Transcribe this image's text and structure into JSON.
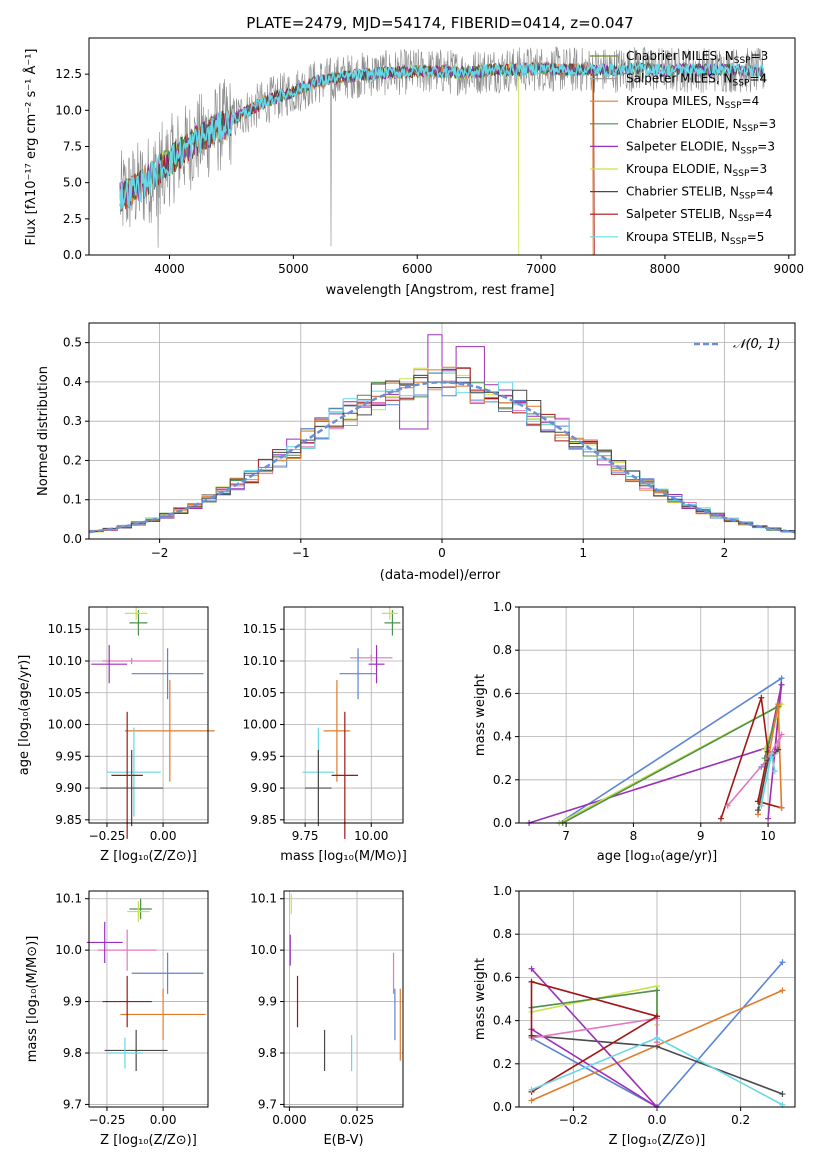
{
  "colors": {
    "chabrier_miles": "#6b8e23",
    "salpeter_miles": "#9e9e9e",
    "kroupa_miles": "#e07b2c",
    "chabrier_elodie": "#4f8f4f",
    "salpeter_elodie": "#9b30b8",
    "kroupa_elodie": "#c8e24a",
    "chabrier_stelib": "#4a4a4a",
    "salpeter_stelib": "#a31515",
    "kroupa_stelib": "#66d8e6",
    "pink": "#e377c2",
    "blue": "#5b84d6",
    "normal": "#6a8fd6"
  },
  "chart_data": [
    {
      "type": "line",
      "title": "PLATE=2479, MJD=54174, FIBERID=0414, z=0.047",
      "xlabel": "wavelength [Angstrom, rest frame]",
      "ylabel": "Flux [fλ10⁻¹⁷ erg cm⁻² s⁻¹ Å⁻¹]",
      "xlim": [
        3350,
        9050
      ],
      "ylim": [
        0,
        15
      ],
      "xticks": [
        "4000",
        "5000",
        "6000",
        "7000",
        "8000",
        "9000"
      ],
      "yticks": [
        "0.0",
        "2.5",
        "5.0",
        "7.5",
        "10.0",
        "12.5"
      ],
      "legend_position": "right",
      "legend": [
        {
          "label": "Chabrier MILES, N",
          "sub": "SSP",
          "tail": "=3"
        },
        {
          "label": "Salpeter MILES, N",
          "sub": "SSP",
          "tail": "=4"
        },
        {
          "label": "Kroupa MILES, N",
          "sub": "SSP",
          "tail": "=4"
        },
        {
          "label": "Chabrier ELODIE, N",
          "sub": "SSP",
          "tail": "=3"
        },
        {
          "label": "Salpeter ELODIE, N",
          "sub": "SSP",
          "tail": "=3"
        },
        {
          "label": "Kroupa ELODIE, N",
          "sub": "SSP",
          "tail": "=3"
        },
        {
          "label": "Chabrier STELIB, N",
          "sub": "SSP",
          "tail": "=4"
        },
        {
          "label": "Salpeter STELIB, N",
          "sub": "SSP",
          "tail": "=4"
        },
        {
          "label": "Kroupa STELIB, N",
          "sub": "SSP",
          "tail": "=5"
        }
      ],
      "continuum": {
        "x": [
          3600,
          3800,
          4000,
          4200,
          4400,
          4600,
          4800,
          5000,
          5200,
          5400,
          5600,
          5800,
          6000,
          6200,
          6400,
          6600,
          6800,
          7000,
          7200,
          7400,
          7600,
          7800,
          8000,
          8200,
          8400,
          8600,
          8800
        ],
        "y": [
          4.0,
          5.0,
          6.5,
          7.8,
          8.8,
          9.8,
          10.7,
          11.3,
          12.0,
          12.3,
          12.5,
          12.6,
          12.7,
          12.7,
          12.6,
          12.8,
          12.8,
          12.9,
          12.8,
          12.8,
          12.8,
          12.9,
          12.8,
          12.8,
          12.8,
          12.8,
          12.7
        ]
      }
    },
    {
      "type": "histogram",
      "xlabel": "(data-model)/error",
      "ylabel": "Normed distribution",
      "xlim": [
        -2.5,
        2.5
      ],
      "ylim": [
        0,
        0.55
      ],
      "xticks": [
        "−2",
        "−1",
        "0",
        "1",
        "2"
      ],
      "yticks": [
        "0.0",
        "0.1",
        "0.2",
        "0.3",
        "0.4",
        "0.5"
      ],
      "legend": "𝒩(0, 1)",
      "reference_curve": "normal(0,1)",
      "bin_width": 0.1,
      "spike_bins": [
        {
          "x": -0.1,
          "y": 0.52
        },
        {
          "x": -0.2,
          "y": 0.28
        },
        {
          "x": 0.2,
          "y": 0.49
        }
      ]
    },
    {
      "type": "scatter",
      "panel": "age_vs_Z",
      "xlabel": "Z [log₁₀(Z/Z⊙)]",
      "ylabel": "age  [log₁₀(age/yr)]",
      "xlim": [
        -0.33,
        0.2
      ],
      "ylim": [
        9.845,
        10.185
      ],
      "xticks": [
        "−0.25",
        "0.00"
      ],
      "yticks": [
        "9.85",
        "9.90",
        "9.95",
        "10.00",
        "10.05",
        "10.10",
        "10.15"
      ],
      "points": [
        {
          "x": -0.11,
          "y": 10.16,
          "xerr": 0.04,
          "yerr": 0.02,
          "c": "chabrier_elodie"
        },
        {
          "x": -0.12,
          "y": 10.175,
          "xerr": 0.05,
          "yerr": 0.01,
          "c": "kroupa_elodie"
        },
        {
          "x": -0.14,
          "y": 10.1,
          "xerr": 0.13,
          "yerr": 0.005,
          "c": "pink"
        },
        {
          "x": -0.24,
          "y": 10.095,
          "xerr": 0.08,
          "yerr": 0.03,
          "c": "salpeter_elodie"
        },
        {
          "x": 0.02,
          "y": 10.08,
          "xerr": 0.16,
          "yerr": 0.04,
          "c": "blue"
        },
        {
          "x": 0.03,
          "y": 9.99,
          "xerr": 0.2,
          "yerr": 0.08,
          "c": "kroupa_miles"
        },
        {
          "x": -0.13,
          "y": 9.925,
          "xerr": 0.12,
          "yerr": 0.07,
          "c": "kroupa_stelib"
        },
        {
          "x": -0.16,
          "y": 9.92,
          "xerr": 0.07,
          "yerr": 0.1,
          "c": "salpeter_stelib"
        },
        {
          "x": -0.14,
          "y": 9.9,
          "xerr": 0.14,
          "yerr": 0.06,
          "c": "chabrier_stelib"
        }
      ]
    },
    {
      "type": "scatter",
      "panel": "age_vs_mass",
      "xlabel": "mass [log₁₀(M/M⊙)]",
      "xlim": [
        9.67,
        10.12
      ],
      "ylim": [
        9.845,
        10.185
      ],
      "xticks": [
        "9.75",
        "10.00"
      ],
      "yticks": [
        "9.85",
        "9.90",
        "9.95",
        "10.00",
        "10.05",
        "10.10",
        "10.15"
      ],
      "points": [
        {
          "x": 10.08,
          "y": 10.16,
          "xerr": 0.03,
          "yerr": 0.02,
          "c": "chabrier_elodie"
        },
        {
          "x": 10.07,
          "y": 10.175,
          "xerr": 0.03,
          "yerr": 0.01,
          "c": "kroupa_elodie"
        },
        {
          "x": 10.0,
          "y": 10.105,
          "xerr": 0.08,
          "yerr": 0.005,
          "c": "pink"
        },
        {
          "x": 10.02,
          "y": 10.095,
          "xerr": 0.03,
          "yerr": 0.03,
          "c": "salpeter_elodie"
        },
        {
          "x": 9.95,
          "y": 10.08,
          "xerr": 0.07,
          "yerr": 0.04,
          "c": "blue"
        },
        {
          "x": 9.87,
          "y": 9.99,
          "xerr": 0.05,
          "yerr": 0.08,
          "c": "kroupa_miles"
        },
        {
          "x": 9.8,
          "y": 9.925,
          "xerr": 0.06,
          "yerr": 0.07,
          "c": "kroupa_stelib"
        },
        {
          "x": 9.9,
          "y": 9.92,
          "xerr": 0.05,
          "yerr": 0.1,
          "c": "salpeter_stelib"
        },
        {
          "x": 9.8,
          "y": 9.9,
          "xerr": 0.05,
          "yerr": 0.06,
          "c": "chabrier_stelib"
        }
      ]
    },
    {
      "type": "line",
      "panel": "weight_vs_age",
      "xlabel": "age  [log₁₀(age/yr)]",
      "ylabel": "mass weight",
      "xlim": [
        6.3,
        10.4
      ],
      "ylim": [
        0,
        1
      ],
      "xticks": [
        "7",
        "8",
        "9",
        "10"
      ],
      "yticks": [
        "0.0",
        "0.2",
        "0.4",
        "0.6",
        "0.8",
        "1.0"
      ],
      "series": [
        {
          "c": "blue",
          "x": [
            6.9,
            10.2,
            10.1,
            9.9
          ],
          "y": [
            0.0,
            0.67,
            0.33,
            0.26
          ]
        },
        {
          "c": "salpeter_elodie",
          "x": [
            6.45,
            10.0,
            10.2,
            10.0
          ],
          "y": [
            0.0,
            0.35,
            0.64,
            0.02
          ]
        },
        {
          "c": "kroupa_elodie",
          "x": [
            6.9,
            10.2,
            9.95
          ],
          "y": [
            0.0,
            0.55,
            0.34
          ]
        },
        {
          "c": "chabrier_elodie",
          "x": [
            6.95,
            10.15,
            9.95
          ],
          "y": [
            0.0,
            0.54,
            0.3
          ]
        },
        {
          "c": "salpeter_stelib",
          "x": [
            9.3,
            9.9,
            10.0,
            9.85,
            10.2
          ],
          "y": [
            0.02,
            0.58,
            0.33,
            0.1,
            0.07
          ]
        },
        {
          "c": "kroupa_miles",
          "x": [
            9.85,
            10.15,
            10.2
          ],
          "y": [
            0.04,
            0.55,
            0.07
          ]
        },
        {
          "c": "pink",
          "x": [
            9.4,
            10.0,
            10.2,
            10.1
          ],
          "y": [
            0.08,
            0.3,
            0.41,
            0.32
          ]
        },
        {
          "c": "chabrier_stelib",
          "x": [
            9.85,
            10.0,
            10.15
          ],
          "y": [
            0.06,
            0.29,
            0.34
          ]
        },
        {
          "c": "kroupa_stelib",
          "x": [
            9.9,
            10.05,
            10.1
          ],
          "y": [
            0.08,
            0.32,
            0.24
          ]
        }
      ]
    },
    {
      "type": "scatter",
      "panel": "mass_vs_Z",
      "xlabel": "Z [log₁₀(Z/Z⊙)]",
      "ylabel": "mass [log₁₀(M/M⊙)]",
      "xlim": [
        -0.33,
        0.2
      ],
      "ylim": [
        9.695,
        10.115
      ],
      "xticks": [
        "−0.25",
        "0.00"
      ],
      "yticks": [
        "9.7",
        "9.8",
        "9.9",
        "10.0",
        "10.1"
      ],
      "points": [
        {
          "x": -0.1,
          "y": 10.08,
          "xerr": 0.05,
          "yerr": 0.02,
          "c": "chabrier_elodie"
        },
        {
          "x": -0.11,
          "y": 10.075,
          "xerr": 0.05,
          "yerr": 0.02,
          "c": "kroupa_elodie"
        },
        {
          "x": -0.16,
          "y": 10.0,
          "xerr": 0.13,
          "yerr": 0.04,
          "c": "pink"
        },
        {
          "x": -0.26,
          "y": 10.015,
          "xerr": 0.08,
          "yerr": 0.04,
          "c": "salpeter_elodie"
        },
        {
          "x": 0.02,
          "y": 9.955,
          "xerr": 0.16,
          "yerr": 0.04,
          "c": "blue"
        },
        {
          "x": 0.0,
          "y": 9.875,
          "xerr": 0.19,
          "yerr": 0.05,
          "c": "kroupa_miles"
        },
        {
          "x": -0.16,
          "y": 9.9,
          "xerr": 0.11,
          "yerr": 0.05,
          "c": "salpeter_stelib"
        },
        {
          "x": -0.12,
          "y": 9.805,
          "xerr": 0.14,
          "yerr": 0.04,
          "c": "chabrier_stelib"
        },
        {
          "x": -0.17,
          "y": 9.8,
          "xerr": 0.08,
          "yerr": 0.03,
          "c": "kroupa_stelib"
        }
      ]
    },
    {
      "type": "scatter",
      "panel": "mass_vs_EBV",
      "xlabel": "E(B-V)",
      "xlim": [
        -0.002,
        0.042
      ],
      "ylim": [
        9.695,
        10.115
      ],
      "xticks": [
        "0.000",
        "0.025"
      ],
      "yticks": [
        "9.7",
        "9.8",
        "9.9",
        "10.0",
        "10.1"
      ],
      "points": [
        {
          "x": 0.0007,
          "y": 10.09,
          "yerr": 0.02,
          "c": "kroupa_elodie"
        },
        {
          "x": 0.0003,
          "y": 10.0,
          "yerr": 0.03,
          "c": "salpeter_elodie"
        },
        {
          "x": 0.003,
          "y": 9.9,
          "yerr": 0.05,
          "c": "salpeter_stelib"
        },
        {
          "x": 0.013,
          "y": 9.805,
          "yerr": 0.04,
          "c": "chabrier_stelib"
        },
        {
          "x": 0.023,
          "y": 9.8,
          "yerr": 0.035,
          "c": "kroupa_stelib"
        },
        {
          "x": 0.0385,
          "y": 9.955,
          "yerr": 0.04,
          "c": "pink"
        },
        {
          "x": 0.039,
          "y": 9.875,
          "yerr": 0.05,
          "c": "blue"
        },
        {
          "x": 0.041,
          "y": 9.855,
          "yerr": 0.07,
          "c": "kroupa_miles"
        }
      ]
    },
    {
      "type": "line",
      "panel": "weight_vs_Z",
      "xlabel": "Z [log₁₀(Z/Z⊙)]",
      "ylabel": "mass weight",
      "xlim": [
        -0.33,
        0.33
      ],
      "ylim": [
        0,
        1
      ],
      "xticks": [
        "−0.2",
        "0.0",
        "0.2"
      ],
      "yticks": [
        "0.0",
        "0.2",
        "0.4",
        "0.6",
        "0.8",
        "1.0"
      ],
      "series": [
        {
          "c": "blue",
          "x": [
            -0.3,
            0.0,
            0.3
          ],
          "y": [
            0.32,
            0.0,
            0.67
          ]
        },
        {
          "c": "kroupa_miles",
          "x": [
            -0.3,
            0.3
          ],
          "y": [
            0.03,
            0.54
          ]
        },
        {
          "c": "chabrier_stelib",
          "x": [
            -0.3,
            0.0,
            0.3
          ],
          "y": [
            0.33,
            0.28,
            0.06
          ]
        },
        {
          "c": "salpeter_elodie",
          "x": [
            -0.3,
            0.0,
            -0.3
          ],
          "y": [
            0.64,
            0.0,
            0.36
          ]
        },
        {
          "c": "kroupa_elodie",
          "x": [
            -0.3,
            0.0,
            0.0
          ],
          "y": [
            0.44,
            0.56,
            0.38
          ]
        },
        {
          "c": "chabrier_elodie",
          "x": [
            -0.3,
            0.0,
            0.0
          ],
          "y": [
            0.46,
            0.54,
            0.3
          ]
        },
        {
          "c": "pink",
          "x": [
            -0.3,
            0.0,
            0.0
          ],
          "y": [
            0.32,
            0.41,
            0.3
          ]
        },
        {
          "c": "salpeter_stelib",
          "x": [
            -0.3,
            0.0,
            -0.3,
            -0.3
          ],
          "y": [
            0.07,
            0.42,
            0.58,
            0.33
          ]
        },
        {
          "c": "kroupa_stelib",
          "x": [
            -0.3,
            0.0,
            0.3
          ],
          "y": [
            0.08,
            0.32,
            0.01
          ]
        }
      ]
    }
  ]
}
